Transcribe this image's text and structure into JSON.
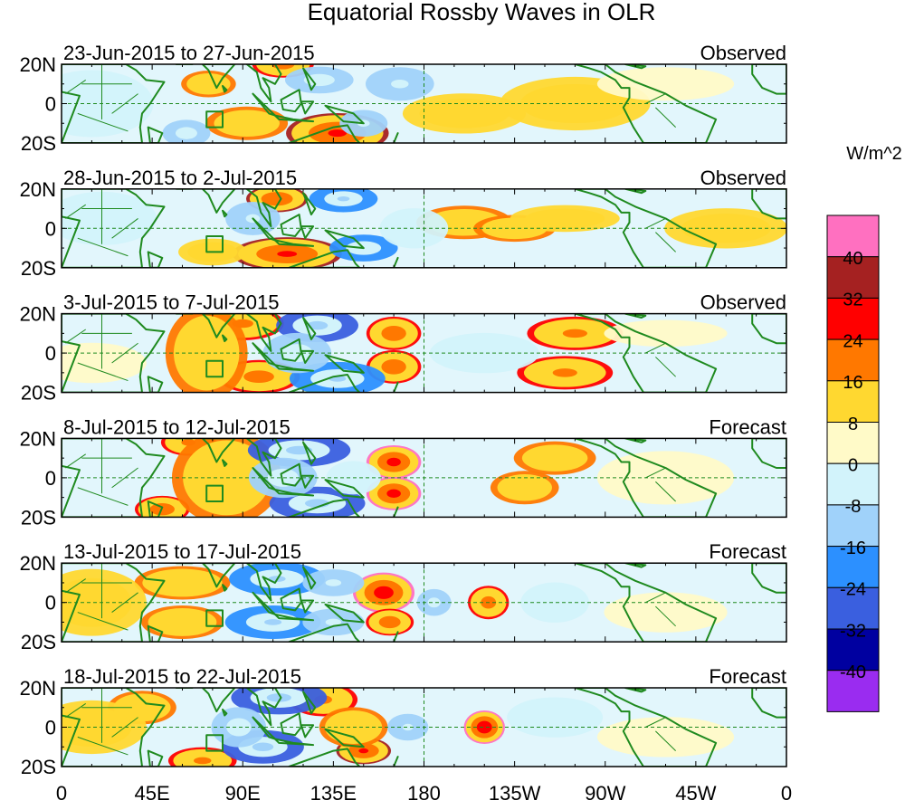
{
  "chart_data": {
    "type": "heatmap",
    "title": "Equatorial Rossby Waves in OLR",
    "units": "W/m^2",
    "lat_labels": [
      "20N",
      "0",
      "20S"
    ],
    "lon_tick_labels": [
      "0",
      "45E",
      "90E",
      "135E",
      "180",
      "135W",
      "90W",
      "45W",
      "0"
    ],
    "lat_range": [
      -20,
      20
    ],
    "lon_range": [
      0,
      360
    ],
    "colorbar": {
      "labels": [
        "40",
        "32",
        "24",
        "16",
        "8",
        "0",
        "-8",
        "-16",
        "-24",
        "-32",
        "-40"
      ],
      "colors": [
        "#ff70c0",
        "#a52121",
        "#ff0000",
        "#ff7800",
        "#ffd830",
        "#fffac8",
        "#d2f3fb",
        "#a0d2fa",
        "#2c90ff",
        "#3a5fdf",
        "#0000a0",
        "#9a2cf0"
      ]
    },
    "panels": [
      {
        "period": "23-Jun-2015 to 27-Jun-2015",
        "status": "Observed",
        "blobs": [
          [
            62,
            -15,
            7,
            4,
            -14
          ],
          [
            110,
            20,
            9,
            4,
            12
          ],
          [
            137,
            -15,
            15,
            6,
            18
          ],
          [
            128,
            12,
            10,
            4,
            -14
          ],
          [
            168,
            10,
            10,
            5,
            -10
          ],
          [
            150,
            -10,
            7,
            4,
            -10
          ],
          [
            73,
            10,
            8,
            4,
            6
          ],
          [
            92,
            -10,
            12,
            5,
            6
          ],
          [
            200,
            -5,
            18,
            6,
            4
          ],
          [
            255,
            0,
            22,
            8,
            4
          ],
          [
            300,
            10,
            20,
            5,
            -4
          ],
          [
            15,
            0,
            18,
            10,
            -5
          ]
        ]
      },
      {
        "period": "28-Jun-2015 to 2-Jul-2015",
        "status": "Observed",
        "blobs": [
          [
            107,
            15,
            9,
            4,
            16
          ],
          [
            112,
            -13,
            16,
            5,
            18
          ],
          [
            140,
            15,
            10,
            4,
            -18
          ],
          [
            150,
            -10,
            10,
            4,
            -16
          ],
          [
            95,
            5,
            8,
            5,
            -10
          ],
          [
            175,
            0,
            10,
            6,
            -8
          ],
          [
            200,
            3,
            14,
            5,
            6
          ],
          [
            225,
            0,
            12,
            4,
            6
          ],
          [
            250,
            5,
            16,
            4,
            4
          ],
          [
            330,
            0,
            18,
            6,
            4
          ],
          [
            20,
            5,
            16,
            8,
            -6
          ],
          [
            75,
            -12,
            10,
            4,
            4
          ]
        ]
      },
      {
        "period": "3-Jul-2015 to 7-Jul-2015",
        "status": "Observed",
        "blobs": [
          [
            90,
            15,
            12,
            5,
            10
          ],
          [
            98,
            -12,
            12,
            5,
            12
          ],
          [
            127,
            14,
            12,
            5,
            -20
          ],
          [
            137,
            -13,
            14,
            5,
            -18
          ],
          [
            117,
            0,
            10,
            6,
            -14
          ],
          [
            165,
            10,
            8,
            5,
            14
          ],
          [
            165,
            -7,
            8,
            5,
            14
          ],
          [
            72,
            0,
            12,
            14,
            6
          ],
          [
            255,
            10,
            14,
            5,
            10
          ],
          [
            250,
            -10,
            14,
            5,
            10
          ],
          [
            210,
            0,
            16,
            6,
            -6
          ],
          [
            300,
            10,
            18,
            4,
            -4
          ],
          [
            15,
            -5,
            16,
            6,
            -4
          ]
        ]
      },
      {
        "period": "8-Jul-2015 to 12-Jul-2015",
        "status": "Forecast",
        "blobs": [
          [
            165,
            8,
            8,
            5,
            20
          ],
          [
            165,
            -8,
            8,
            5,
            20
          ],
          [
            118,
            14,
            15,
            5,
            -20
          ],
          [
            127,
            -13,
            14,
            5,
            -20
          ],
          [
            110,
            0,
            10,
            6,
            -14
          ],
          [
            63,
            18,
            8,
            4,
            10
          ],
          [
            50,
            -16,
            8,
            4,
            14
          ],
          [
            82,
            0,
            16,
            14,
            6
          ],
          [
            145,
            0,
            8,
            5,
            -8
          ],
          [
            245,
            10,
            12,
            5,
            6
          ],
          [
            230,
            -5,
            10,
            5,
            6
          ],
          [
            300,
            0,
            20,
            8,
            -4
          ]
        ]
      },
      {
        "period": "13-Jul-2015 to 17-Jul-2015",
        "status": "Forecast",
        "blobs": [
          [
            160,
            5,
            9,
            6,
            22
          ],
          [
            163,
            -10,
            7,
            4,
            14
          ],
          [
            107,
            12,
            14,
            5,
            -18
          ],
          [
            105,
            -10,
            14,
            5,
            -18
          ],
          [
            135,
            10,
            9,
            4,
            -10
          ],
          [
            135,
            -10,
            9,
            4,
            -10
          ],
          [
            60,
            10,
            14,
            5,
            8
          ],
          [
            60,
            -10,
            12,
            5,
            8
          ],
          [
            185,
            0,
            5,
            4,
            -12
          ],
          [
            212,
            0,
            6,
            5,
            12
          ],
          [
            245,
            0,
            10,
            6,
            -6
          ],
          [
            300,
            -5,
            18,
            6,
            -4
          ],
          [
            15,
            0,
            16,
            10,
            4
          ]
        ]
      },
      {
        "period": "18-Jul-2015 to 22-Jul-2015",
        "status": "Forecast",
        "blobs": [
          [
            108,
            15,
            14,
            5,
            -20
          ],
          [
            100,
            -10,
            12,
            5,
            -20
          ],
          [
            130,
            14,
            10,
            5,
            10
          ],
          [
            150,
            -12,
            8,
            4,
            18
          ],
          [
            145,
            0,
            10,
            6,
            8
          ],
          [
            172,
            0,
            6,
            4,
            -10
          ],
          [
            210,
            0,
            6,
            5,
            24
          ],
          [
            70,
            -17,
            10,
            4,
            10
          ],
          [
            40,
            10,
            10,
            5,
            8
          ],
          [
            88,
            0,
            8,
            6,
            -14
          ],
          [
            245,
            5,
            14,
            6,
            -6
          ],
          [
            300,
            -5,
            20,
            6,
            -4
          ],
          [
            15,
            0,
            16,
            8,
            4
          ]
        ]
      }
    ]
  }
}
